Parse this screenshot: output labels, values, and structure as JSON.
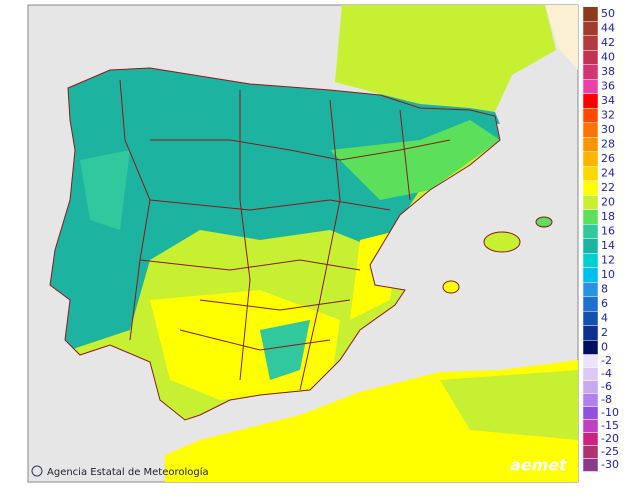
{
  "map": {
    "credit": "Agencia Estatal de Meteorología",
    "logo": "aemet",
    "legend": {
      "positive": [
        {
          "label": 50,
          "color": "#8b3a1a"
        },
        {
          "label": 44,
          "color": "#a33c2c"
        },
        {
          "label": 42,
          "color": "#b33a3e"
        },
        {
          "label": 40,
          "color": "#c33452"
        },
        {
          "label": 38,
          "color": "#d43470"
        },
        {
          "label": 36,
          "color": "#ec40a8"
        },
        {
          "label": 34,
          "color": "#ff0000"
        },
        {
          "label": 32,
          "color": "#ff4a00"
        },
        {
          "label": 30,
          "color": "#ff7400"
        },
        {
          "label": 28,
          "color": "#ff9400"
        },
        {
          "label": 26,
          "color": "#ffb400"
        },
        {
          "label": 24,
          "color": "#ffd800"
        },
        {
          "label": 22,
          "color": "#ffff00"
        },
        {
          "label": 20,
          "color": "#c8f032"
        },
        {
          "label": 18,
          "color": "#5ce05c"
        },
        {
          "label": 16,
          "color": "#30c89c"
        },
        {
          "label": 14,
          "color": "#1cb4a0"
        },
        {
          "label": 12,
          "color": "#00d0d0"
        },
        {
          "label": 10,
          "color": "#00bff0"
        },
        {
          "label": 8,
          "color": "#2a92e2"
        },
        {
          "label": 6,
          "color": "#2070d0"
        },
        {
          "label": 4,
          "color": "#1450b0"
        },
        {
          "label": 2,
          "color": "#103090"
        },
        {
          "label": 0,
          "color": "#001060"
        }
      ],
      "negative": [
        {
          "label": -2,
          "color": "#ece4fa"
        },
        {
          "label": -4,
          "color": "#dccaf4"
        },
        {
          "label": -6,
          "color": "#c8a8f0"
        },
        {
          "label": -8,
          "color": "#b080f0"
        },
        {
          "label": -10,
          "color": "#9050e0"
        },
        {
          "label": -15,
          "color": "#c040c0"
        },
        {
          "label": -20,
          "color": "#d02080"
        },
        {
          "label": -25,
          "color": "#b03070"
        },
        {
          "label": -30,
          "color": "#8b3a8b"
        }
      ]
    }
  }
}
